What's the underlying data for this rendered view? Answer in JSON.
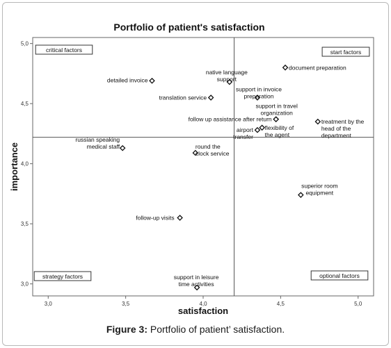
{
  "caption": {
    "label": "Figure 3:",
    "text": " Portfolio of patient’ satisfaction."
  },
  "chart_data": {
    "type": "scatter",
    "title": "Portfolio of patient's satisfaction",
    "xlabel": "satisfaction",
    "ylabel": "importance",
    "xlim": [
      2.9,
      5.1
    ],
    "ylim": [
      2.9,
      5.05
    ],
    "x_ticks": [
      3.0,
      3.5,
      4.0,
      4.5,
      5.0
    ],
    "x_tick_labels": [
      "3,0",
      "3,5",
      "4,0",
      "4,5",
      "5,0"
    ],
    "y_ticks": [
      3.0,
      3.5,
      4.0,
      4.5,
      5.0
    ],
    "y_tick_labels": [
      "3,0",
      "3,5",
      "4,0",
      "4,5",
      "5,0"
    ],
    "reference_lines": {
      "x": 4.2,
      "y": 4.22
    },
    "marker": "diamond",
    "points": [
      {
        "label": "detailed invoice",
        "x": 3.67,
        "y": 4.69
      },
      {
        "label": "native language support",
        "x": 4.17,
        "y": 4.68
      },
      {
        "label": "document preparation",
        "x": 4.53,
        "y": 4.8
      },
      {
        "label": "translation service",
        "x": 4.05,
        "y": 4.55
      },
      {
        "label": "support in invoice preparation",
        "x": 4.35,
        "y": 4.55
      },
      {
        "label": "support in travel organization",
        "x": 4.47,
        "y": 4.37
      },
      {
        "label": "follow up assistance after return",
        "x": 4.47,
        "y": 4.37
      },
      {
        "label": "airport transfer",
        "x": 4.35,
        "y": 4.28
      },
      {
        "label": "flexibility of the agent",
        "x": 4.38,
        "y": 4.3
      },
      {
        "label": "treatment by the head of the department",
        "x": 4.74,
        "y": 4.35
      },
      {
        "label": "russian speaking medical staff",
        "x": 3.48,
        "y": 4.13
      },
      {
        "label": "round the clock service",
        "x": 3.95,
        "y": 4.09
      },
      {
        "label": "superior room equipment",
        "x": 4.63,
        "y": 3.74
      },
      {
        "label": "follow-up visits",
        "x": 3.85,
        "y": 3.55
      },
      {
        "label": "support in leisure time activities",
        "x": 3.96,
        "y": 2.97
      }
    ],
    "point_label_lines": [
      [
        "detailed invoice"
      ],
      [
        "native language",
        "support"
      ],
      [
        "document preparation"
      ],
      [
        "translation service"
      ],
      [
        "support in invoice",
        "preparation"
      ],
      [
        "support in travel",
        "organization"
      ],
      [
        "follow up assistance after return"
      ],
      [
        "airport",
        "transfer"
      ],
      [
        "flexibility of",
        "the agent"
      ],
      [
        "treatment by the",
        "head of the",
        "department"
      ],
      [
        "russian speaking",
        "medical staff"
      ],
      [
        "round the",
        "clock service"
      ],
      [
        "superior room",
        "equipment"
      ],
      [
        "follow-up visits"
      ],
      [
        "support in leisure",
        "time activities"
      ]
    ],
    "quadrant_labels": [
      "critical factors",
      "start factors",
      "strategy factors",
      "optional factors"
    ]
  }
}
